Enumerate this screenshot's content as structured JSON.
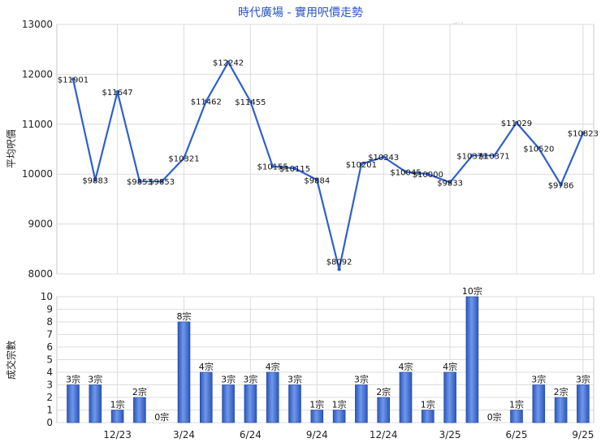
{
  "chart_data": [
    {
      "type": "line",
      "title": "時代廣場 - 實用呎價走勢",
      "ylabel": "平均呎價",
      "ylim": [
        8000,
        13000
      ],
      "yticks": [
        "8000",
        "9000",
        "10000",
        "11000",
        "12000",
        "13000"
      ],
      "grid": true,
      "color": "#2f5fcc",
      "points": [
        {
          "label": "$11901",
          "value": 11901
        },
        {
          "label": "$9883",
          "value": 9883
        },
        {
          "label": "$11647",
          "value": 11647
        },
        {
          "label": "$9853",
          "value": 9853
        },
        {
          "label": "$9853",
          "value": 9853
        },
        {
          "label": "$10321",
          "value": 10321
        },
        {
          "label": "$11462",
          "value": 11462
        },
        {
          "label": "$12242",
          "value": 12242
        },
        {
          "label": "$11455",
          "value": 11455
        },
        {
          "label": "$10155",
          "value": 10155
        },
        {
          "label": "$10115",
          "value": 10115
        },
        {
          "label": "$9884",
          "value": 9884
        },
        {
          "label": "$8092",
          "value": 8092
        },
        {
          "label": "$10201",
          "value": 10201
        },
        {
          "label": "$10343",
          "value": 10343
        },
        {
          "label": "$10045",
          "value": 10045
        },
        {
          "label": "$10000",
          "value": 10000
        },
        {
          "label": "$9833",
          "value": 9833
        },
        {
          "label": "$10371",
          "value": 10371
        },
        {
          "label": "$10371",
          "value": 10371
        },
        {
          "label": "$11029",
          "value": 11029
        },
        {
          "label": "$10520",
          "value": 10520
        },
        {
          "label": "$9786",
          "value": 9786
        },
        {
          "label": "$10823",
          "value": 10823
        }
      ],
      "dotted_segments": [
        [
          3,
          4
        ],
        [
          18,
          19
        ]
      ]
    },
    {
      "type": "bar",
      "ylabel": "成交宗數",
      "ylim": [
        0,
        10
      ],
      "yticks": [
        "0",
        "1",
        "2",
        "3",
        "4",
        "5",
        "6",
        "7",
        "8",
        "9",
        "10"
      ],
      "grid": true,
      "color": "#3f6fd6",
      "values": [
        3,
        3,
        1,
        2,
        0,
        8,
        4,
        3,
        3,
        4,
        3,
        1,
        1,
        3,
        2,
        4,
        1,
        4,
        10,
        0,
        1,
        3,
        2,
        3
      ],
      "labels": [
        "3宗",
        "3宗",
        "1宗",
        "2宗",
        "0宗",
        "8宗",
        "4宗",
        "3宗",
        "3宗",
        "4宗",
        "3宗",
        "1宗",
        "1宗",
        "3宗",
        "2宗",
        "4宗",
        "1宗",
        "4宗",
        "10宗",
        "0宗",
        "1宗",
        "3宗",
        "2宗",
        "3宗"
      ],
      "xticks": [
        {
          "label": "12/23",
          "index": 2
        },
        {
          "label": "3/24",
          "index": 5
        },
        {
          "label": "6/24",
          "index": 8
        },
        {
          "label": "9/24",
          "index": 11
        },
        {
          "label": "12/24",
          "index": 14
        },
        {
          "label": "3/25",
          "index": 17
        },
        {
          "label": "6/25",
          "index": 20
        },
        {
          "label": "9/25",
          "index": 23
        }
      ]
    }
  ],
  "watermark": "科一"
}
